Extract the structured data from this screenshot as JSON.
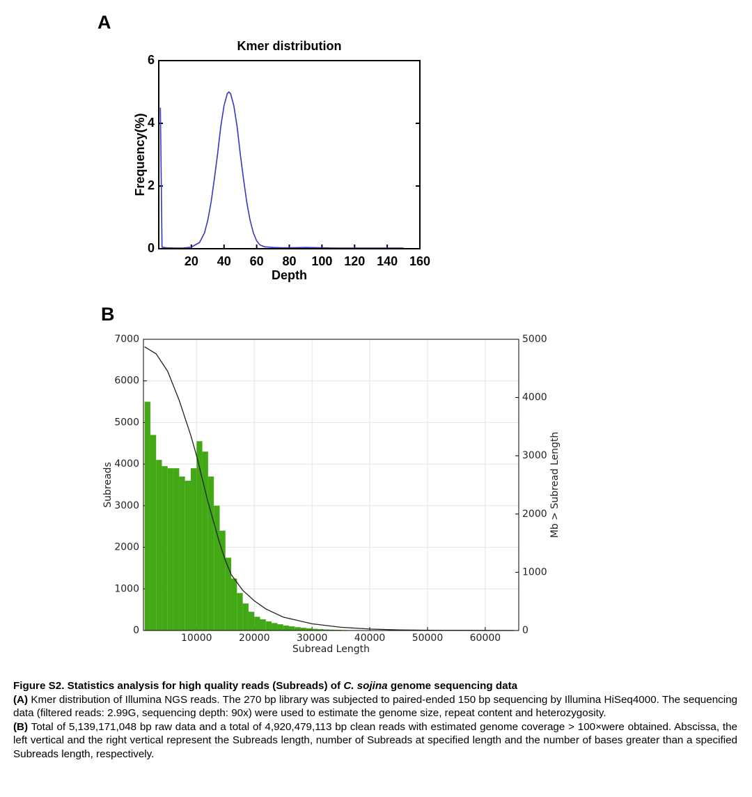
{
  "chart_data": [
    {
      "type": "line",
      "panel_label": "A",
      "title": "Kmer distribution",
      "xlabel": "Depth",
      "ylabel": "Frequency(%)",
      "x": [
        1,
        2,
        5,
        10,
        15,
        20,
        25,
        28,
        30,
        32,
        34,
        36,
        38,
        40,
        42,
        43,
        44,
        46,
        48,
        50,
        52,
        54,
        56,
        58,
        60,
        62,
        65,
        70,
        75,
        80,
        90,
        100,
        110,
        120,
        130,
        140,
        150
      ],
      "series": [
        {
          "color": "#3535c8",
          "values": [
            4.5,
            0.05,
            0.03,
            0.02,
            0.02,
            0.05,
            0.2,
            0.5,
            0.9,
            1.46,
            2.2,
            3.0,
            3.9,
            4.56,
            4.95,
            5.0,
            4.95,
            4.56,
            3.9,
            3.0,
            2.2,
            1.46,
            0.9,
            0.5,
            0.25,
            0.12,
            0.06,
            0.04,
            0.03,
            0.03,
            0.04,
            0.03,
            0.02,
            0.02,
            0.02,
            0.02,
            0.02
          ]
        }
      ],
      "xlim": [
        0,
        160
      ],
      "xticks": [
        20,
        40,
        60,
        80,
        100,
        120,
        140,
        160
      ],
      "ylim": [
        0,
        6
      ],
      "yticks": [
        0,
        2,
        4,
        6
      ],
      "grid": false
    },
    {
      "type": "histogram",
      "panel_label": "B",
      "xlabel": "Subread Length",
      "ylabel": "Subreads",
      "y2label": "Mb > Subread Length",
      "bins": [
        1000,
        2000,
        3000,
        4000,
        5000,
        6000,
        7000,
        8000,
        9000,
        10000,
        11000,
        12000,
        13000,
        14000,
        15000,
        16000,
        17000,
        18000,
        19000,
        20000,
        21000,
        22000,
        23000,
        24000,
        25000,
        26000,
        27000,
        28000,
        29000,
        30000,
        31000,
        32000,
        33000,
        34000,
        35000,
        36000,
        37000,
        38000,
        39000,
        40000,
        41000,
        42000,
        43000,
        44000,
        45000
      ],
      "values": [
        5500,
        4700,
        4100,
        3950,
        3900,
        3900,
        3700,
        3600,
        3900,
        4550,
        4300,
        3700,
        3000,
        2400,
        1750,
        1250,
        900,
        650,
        450,
        330,
        270,
        220,
        180,
        150,
        120,
        100,
        80,
        65,
        50,
        40,
        32,
        25,
        20,
        16,
        12,
        9,
        7,
        5,
        4,
        3,
        2,
        2,
        1,
        1
      ],
      "color": "#43a815",
      "line": {
        "axis": "y2",
        "color": "#222222",
        "x": [
          1000,
          3000,
          5000,
          7000,
          9000,
          10000,
          11000,
          12000,
          13000,
          14000,
          15000,
          16000,
          18000,
          20000,
          22000,
          25000,
          30000,
          35000,
          40000,
          45000,
          50000,
          55000,
          60000,
          65000
        ],
        "values": [
          4870,
          4750,
          4450,
          3950,
          3350,
          3000,
          2600,
          2200,
          1850,
          1500,
          1200,
          960,
          690,
          510,
          370,
          230,
          115,
          55,
          25,
          10,
          4,
          2,
          1,
          0
        ]
      },
      "xlim": [
        800,
        65800
      ],
      "xticks": [
        10000,
        20000,
        30000,
        40000,
        50000,
        60000
      ],
      "ylim": [
        0,
        7000
      ],
      "yticks": [
        0,
        1000,
        2000,
        3000,
        4000,
        5000,
        6000,
        7000
      ],
      "y2lim": [
        0,
        5000
      ],
      "y2ticks": [
        0,
        1000,
        2000,
        3000,
        4000,
        5000
      ],
      "grid": true
    }
  ],
  "caption": {
    "title": [
      "Figure S2.  Statistics analysis for high quality reads (Subreads) of ",
      "C. sojina",
      " genome sequencing data"
    ],
    "paragraphs": [
      {
        "label": "(A)",
        "text": " Kmer distribution of Illumina NGS reads. The 270 bp library was subjected to paired-ended 150 bp sequencing by Illumina HiSeq4000. The sequencing data (filtered reads: 2.99G, sequencing depth: 90x) were used to estimate the genome size, repeat content and heterozygosity."
      },
      {
        "label": "(B)",
        "text": " Total of 5,139,171,048 bp raw data and a total of 4,920,479,113 bp clean reads with estimated genome coverage > 100×were obtained. Abscissa, the left vertical and  the right vertical represent the Subreads length, number of Subreads at specified length and the number of bases greater than a specified Subreads length, respectively."
      }
    ]
  }
}
